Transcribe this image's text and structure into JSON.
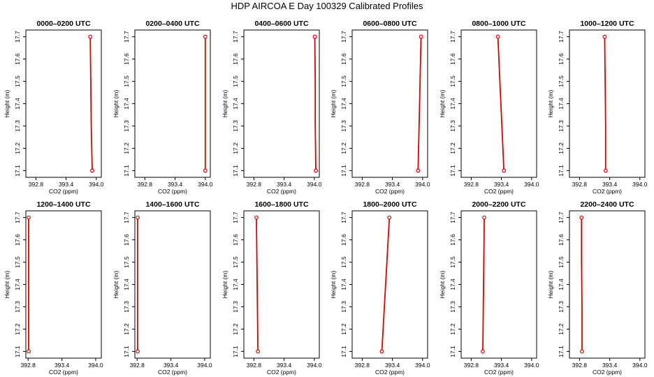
{
  "figure_title": "HDP AIRCOA E  Day 100329  Calibrated Profiles",
  "chart_data": [
    {
      "type": "line",
      "title": "0000–0200 UTC",
      "xlabel": "CO2 (ppm)",
      "ylabel": "Height (m)",
      "xlim": [
        392.6,
        394.1
      ],
      "ylim": [
        17.07,
        17.73
      ],
      "x_ticks": [
        "392.8",
        "393.4",
        "394.0"
      ],
      "y_ticks": [
        "17.1",
        "17.2",
        "17.3",
        "17.4",
        "17.5",
        "17.6",
        "17.7"
      ],
      "color": "#dd0000",
      "points": [
        {
          "x": 393.92,
          "y": 17.1
        },
        {
          "x": 393.9,
          "y": 17.3
        },
        {
          "x": 393.89,
          "y": 17.5
        },
        {
          "x": 393.88,
          "y": 17.7
        }
      ]
    },
    {
      "type": "line",
      "title": "0200–0400 UTC",
      "xlabel": "CO2 (ppm)",
      "ylabel": "Height (m)",
      "xlim": [
        392.6,
        394.1
      ],
      "ylim": [
        17.07,
        17.73
      ],
      "x_ticks": [
        "392.8",
        "393.4",
        "394.0"
      ],
      "y_ticks": [
        "17.1",
        "17.2",
        "17.3",
        "17.4",
        "17.5",
        "17.6",
        "17.7"
      ],
      "color": "#dd0000",
      "points": [
        {
          "x": 394.0,
          "y": 17.1
        },
        {
          "x": 394.0,
          "y": 17.3
        },
        {
          "x": 394.0,
          "y": 17.5
        },
        {
          "x": 394.0,
          "y": 17.7
        }
      ]
    },
    {
      "type": "line",
      "title": "0400–0600 UTC",
      "xlabel": "CO2 (ppm)",
      "ylabel": "Height (m)",
      "xlim": [
        392.6,
        394.1
      ],
      "ylim": [
        17.07,
        17.73
      ],
      "x_ticks": [
        "392.8",
        "393.4",
        "394.0"
      ],
      "y_ticks": [
        "17.1",
        "17.2",
        "17.3",
        "17.4",
        "17.5",
        "17.6",
        "17.7"
      ],
      "color": "#dd0000",
      "points": [
        {
          "x": 394.03,
          "y": 17.1
        },
        {
          "x": 394.02,
          "y": 17.3
        },
        {
          "x": 394.02,
          "y": 17.5
        },
        {
          "x": 394.01,
          "y": 17.7
        }
      ]
    },
    {
      "type": "line",
      "title": "0600–0800 UTC",
      "xlabel": "CO2 (ppm)",
      "ylabel": "Height (m)",
      "xlim": [
        392.6,
        394.1
      ],
      "ylim": [
        17.07,
        17.73
      ],
      "x_ticks": [
        "392.8",
        "393.4",
        "394.0"
      ],
      "y_ticks": [
        "17.1",
        "17.2",
        "17.3",
        "17.4",
        "17.5",
        "17.6",
        "17.7"
      ],
      "color": "#dd0000",
      "points": [
        {
          "x": 393.91,
          "y": 17.1
        },
        {
          "x": 393.93,
          "y": 17.3
        },
        {
          "x": 393.95,
          "y": 17.5
        },
        {
          "x": 393.97,
          "y": 17.7
        }
      ]
    },
    {
      "type": "line",
      "title": "0800–1000 UTC",
      "xlabel": "CO2 (ppm)",
      "ylabel": "Height (m)",
      "xlim": [
        392.6,
        394.1
      ],
      "ylim": [
        17.07,
        17.73
      ],
      "x_ticks": [
        "392.8",
        "393.4",
        "394.0"
      ],
      "y_ticks": [
        "17.1",
        "17.2",
        "17.3",
        "17.4",
        "17.5",
        "17.6",
        "17.7"
      ],
      "color": "#dd0000",
      "points": [
        {
          "x": 393.45,
          "y": 17.1
        },
        {
          "x": 393.41,
          "y": 17.3
        },
        {
          "x": 393.37,
          "y": 17.5
        },
        {
          "x": 393.33,
          "y": 17.7
        }
      ]
    },
    {
      "type": "line",
      "title": "1000–1200 UTC",
      "xlabel": "CO2 (ppm)",
      "ylabel": "Height (m)",
      "xlim": [
        392.6,
        394.1
      ],
      "ylim": [
        17.07,
        17.73
      ],
      "x_ticks": [
        "392.8",
        "393.4",
        "394.0"
      ],
      "y_ticks": [
        "17.1",
        "17.2",
        "17.3",
        "17.4",
        "17.5",
        "17.6",
        "17.7"
      ],
      "color": "#dd0000",
      "points": [
        {
          "x": 393.32,
          "y": 17.1
        },
        {
          "x": 393.32,
          "y": 17.3
        },
        {
          "x": 393.31,
          "y": 17.5
        },
        {
          "x": 393.3,
          "y": 17.7
        }
      ]
    },
    {
      "type": "line",
      "title": "1200–1400 UTC",
      "xlabel": "CO2 (ppm)",
      "ylabel": "Height (m)",
      "xlim": [
        392.76,
        394.1
      ],
      "ylim": [
        17.07,
        17.73
      ],
      "x_ticks": [
        "392.8",
        "393.4",
        "394.0"
      ],
      "y_ticks": [
        "17.1",
        "17.2",
        "17.3",
        "17.4",
        "17.5",
        "17.6",
        "17.7"
      ],
      "color": "#dd0000",
      "points": [
        {
          "x": 392.81,
          "y": 17.1
        },
        {
          "x": 392.81,
          "y": 17.3
        },
        {
          "x": 392.81,
          "y": 17.5
        },
        {
          "x": 392.81,
          "y": 17.7
        }
      ]
    },
    {
      "type": "line",
      "title": "1400–1600 UTC",
      "xlabel": "CO2 (ppm)",
      "ylabel": "Height (m)",
      "xlim": [
        392.76,
        394.1
      ],
      "ylim": [
        17.07,
        17.73
      ],
      "x_ticks": [
        "392.8",
        "393.4",
        "394.0"
      ],
      "y_ticks": [
        "17.1",
        "17.2",
        "17.3",
        "17.4",
        "17.5",
        "17.6",
        "17.7"
      ],
      "color": "#dd0000",
      "points": [
        {
          "x": 392.81,
          "y": 17.1
        },
        {
          "x": 392.81,
          "y": 17.3
        },
        {
          "x": 392.81,
          "y": 17.5
        },
        {
          "x": 392.81,
          "y": 17.7
        }
      ]
    },
    {
      "type": "line",
      "title": "1600–1800 UTC",
      "xlabel": "CO2 (ppm)",
      "ylabel": "Height (m)",
      "xlim": [
        392.6,
        394.1
      ],
      "ylim": [
        17.07,
        17.73
      ],
      "x_ticks": [
        "392.8",
        "393.4",
        "394.0"
      ],
      "y_ticks": [
        "17.1",
        "17.2",
        "17.3",
        "17.4",
        "17.5",
        "17.6",
        "17.7"
      ],
      "color": "#dd0000",
      "points": [
        {
          "x": 392.88,
          "y": 17.1
        },
        {
          "x": 392.87,
          "y": 17.3
        },
        {
          "x": 392.86,
          "y": 17.5
        },
        {
          "x": 392.85,
          "y": 17.7
        }
      ]
    },
    {
      "type": "line",
      "title": "1800–2000 UTC",
      "xlabel": "CO2 (ppm)",
      "ylabel": "Height (m)",
      "xlim": [
        392.6,
        394.1
      ],
      "ylim": [
        17.07,
        17.73
      ],
      "x_ticks": [
        "392.8",
        "393.4",
        "394.0"
      ],
      "y_ticks": [
        "17.1",
        "17.2",
        "17.3",
        "17.4",
        "17.5",
        "17.6",
        "17.7"
      ],
      "color": "#dd0000",
      "points": [
        {
          "x": 393.19,
          "y": 17.1
        },
        {
          "x": 393.24,
          "y": 17.3
        },
        {
          "x": 393.29,
          "y": 17.5
        },
        {
          "x": 393.34,
          "y": 17.7
        }
      ]
    },
    {
      "type": "line",
      "title": "2000–2200 UTC",
      "xlabel": "CO2 (ppm)",
      "ylabel": "Height (m)",
      "xlim": [
        392.6,
        394.1
      ],
      "ylim": [
        17.07,
        17.73
      ],
      "x_ticks": [
        "392.8",
        "393.4",
        "394.0"
      ],
      "y_ticks": [
        "17.1",
        "17.2",
        "17.3",
        "17.4",
        "17.5",
        "17.6",
        "17.7"
      ],
      "color": "#dd0000",
      "points": [
        {
          "x": 393.03,
          "y": 17.1
        },
        {
          "x": 393.04,
          "y": 17.3
        },
        {
          "x": 393.05,
          "y": 17.5
        },
        {
          "x": 393.06,
          "y": 17.7
        }
      ]
    },
    {
      "type": "line",
      "title": "2200–2400 UTC",
      "xlabel": "CO2 (ppm)",
      "ylabel": "Height (m)",
      "xlim": [
        392.6,
        394.1
      ],
      "ylim": [
        17.07,
        17.73
      ],
      "x_ticks": [
        "392.8",
        "393.4",
        "394.0"
      ],
      "y_ticks": [
        "17.1",
        "17.2",
        "17.3",
        "17.4",
        "17.5",
        "17.6",
        "17.7"
      ],
      "color": "#dd0000",
      "points": [
        {
          "x": 392.85,
          "y": 17.1
        },
        {
          "x": 392.85,
          "y": 17.3
        },
        {
          "x": 392.84,
          "y": 17.5
        },
        {
          "x": 392.84,
          "y": 17.7
        }
      ]
    }
  ]
}
